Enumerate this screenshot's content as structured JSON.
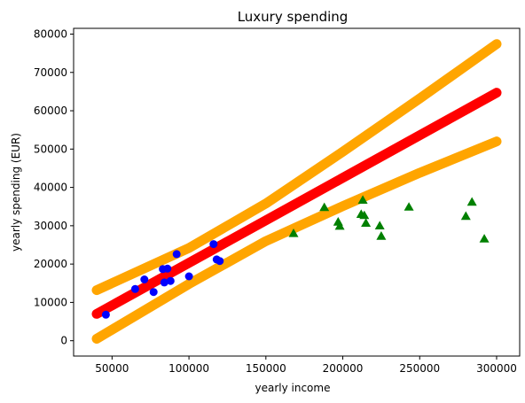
{
  "chart_data": {
    "type": "scatter",
    "title": "Luxury spending",
    "xlabel": "yearly income",
    "ylabel": "yearly spending (EUR)",
    "xlim": [
      25000,
      315000
    ],
    "ylim": [
      -4000,
      81500
    ],
    "x_ticks": [
      50000,
      100000,
      150000,
      200000,
      250000,
      300000
    ],
    "x_tick_labels": [
      "50000",
      "100000",
      "150000",
      "200000",
      "250000",
      "300000"
    ],
    "y_ticks": [
      0,
      10000,
      20000,
      30000,
      40000,
      50000,
      60000,
      70000,
      80000
    ],
    "y_tick_labels": [
      "0",
      "10000",
      "20000",
      "30000",
      "40000",
      "50000",
      "60000",
      "70000",
      "80000"
    ],
    "grid": false,
    "legend": "none",
    "regression_line": {
      "color": "#ff0000",
      "points": [
        [
          40000,
          7000
        ],
        [
          300000,
          64700
        ]
      ]
    },
    "confidence_bands": {
      "color": "#ffa500",
      "upper": [
        [
          40000,
          13200
        ],
        [
          100000,
          24200
        ],
        [
          150000,
          35800
        ],
        [
          200000,
          49300
        ],
        [
          250000,
          63200
        ],
        [
          300000,
          77400
        ]
      ],
      "lower": [
        [
          40000,
          500
        ],
        [
          100000,
          14800
        ],
        [
          150000,
          26000
        ],
        [
          200000,
          35100
        ],
        [
          250000,
          43800
        ],
        [
          300000,
          52000
        ]
      ]
    },
    "series": [
      {
        "marker": "circle",
        "color": "#0000ff",
        "points": [
          [
            46000,
            6800
          ],
          [
            65000,
            13500
          ],
          [
            71000,
            16000
          ],
          [
            77000,
            12700
          ],
          [
            83000,
            18700
          ],
          [
            86000,
            18800
          ],
          [
            84000,
            15200
          ],
          [
            88000,
            15600
          ],
          [
            92000,
            22600
          ],
          [
            100000,
            16800
          ],
          [
            116000,
            25200
          ],
          [
            118000,
            21200
          ],
          [
            120000,
            20800
          ]
        ]
      },
      {
        "marker": "triangle",
        "color": "#008000",
        "points": [
          [
            168000,
            28000
          ],
          [
            188000,
            34800
          ],
          [
            197000,
            31000
          ],
          [
            198000,
            29900
          ],
          [
            212000,
            33000
          ],
          [
            213000,
            36700
          ],
          [
            214000,
            32700
          ],
          [
            215000,
            30700
          ],
          [
            224000,
            30000
          ],
          [
            225000,
            27300
          ],
          [
            243000,
            34900
          ],
          [
            280000,
            32500
          ],
          [
            284000,
            36200
          ],
          [
            292000,
            26600
          ]
        ]
      }
    ]
  }
}
